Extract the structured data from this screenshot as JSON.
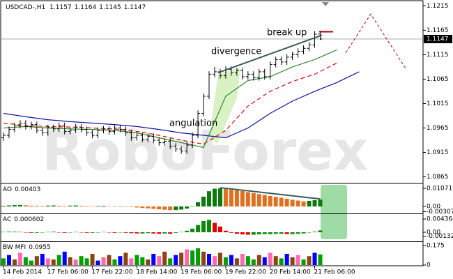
{
  "chart_data": [
    {
      "type": "ohlc",
      "title": "USDCAD-,H1",
      "watermark": "RoboForex",
      "color": "#000000",
      "open": [
        1.0945,
        1.095,
        1.0962,
        1.097,
        1.0975,
        1.0968,
        1.0972,
        1.096,
        1.0955,
        1.0966,
        1.0963,
        1.097,
        1.0958,
        1.096,
        1.0967,
        1.0962,
        1.0955,
        1.095,
        1.096,
        1.0963,
        1.0958,
        1.0965,
        1.0962,
        1.0955,
        1.0945,
        1.095,
        1.0942,
        1.0948,
        1.094,
        1.0935,
        1.0938,
        1.0928,
        1.0922,
        1.0918,
        1.093,
        1.095,
        1.0995,
        1.103,
        1.1075,
        1.108,
        1.1072,
        1.1085,
        1.1078,
        1.1082,
        1.107,
        1.1075,
        1.1068,
        1.108,
        1.107,
        1.1095,
        1.1105,
        1.11,
        1.111,
        1.1115,
        1.1122,
        1.1128,
        1.1135,
        1.1157
      ],
      "high": [
        1.0956,
        1.0968,
        1.0976,
        1.0981,
        1.0981,
        1.0978,
        1.0978,
        1.0966,
        1.0972,
        1.0972,
        1.0976,
        1.0976,
        1.0966,
        1.0973,
        1.0973,
        1.0968,
        1.0961,
        1.0966,
        1.0969,
        1.0969,
        1.0971,
        1.0971,
        1.0968,
        1.0961,
        1.0956,
        1.0956,
        1.0954,
        1.0954,
        1.0946,
        1.0944,
        1.0944,
        1.0934,
        1.0928,
        1.0936,
        1.0956,
        1.1001,
        1.1036,
        1.1081,
        1.109,
        1.1086,
        1.1091,
        1.1091,
        1.1088,
        1.1088,
        1.1081,
        1.1081,
        1.1086,
        1.1086,
        1.1101,
        1.1111,
        1.1111,
        1.1116,
        1.1121,
        1.1128,
        1.1134,
        1.1141,
        1.1163,
        1.1164
      ],
      "low": [
        1.0939,
        1.0944,
        1.0956,
        1.0964,
        1.0962,
        1.0962,
        1.0954,
        1.0949,
        1.0949,
        1.0957,
        1.0957,
        1.0952,
        1.0952,
        1.0954,
        1.0956,
        1.0949,
        1.0944,
        1.0944,
        1.0954,
        1.0952,
        1.0952,
        1.0956,
        1.0949,
        1.0939,
        1.0939,
        1.0936,
        1.0936,
        1.0934,
        1.0929,
        1.0929,
        1.0922,
        1.0916,
        1.0912,
        1.0912,
        1.0924,
        1.0944,
        1.0989,
        1.1024,
        1.1069,
        1.1066,
        1.1066,
        1.1072,
        1.1072,
        1.1064,
        1.1064,
        1.1062,
        1.1062,
        1.1064,
        1.1064,
        1.1089,
        1.1094,
        1.1094,
        1.1104,
        1.1109,
        1.1116,
        1.1122,
        1.1129,
        1.1145
      ],
      "close": [
        1.095,
        1.0962,
        1.097,
        1.0975,
        1.0968,
        1.0972,
        1.096,
        1.0955,
        1.0966,
        1.0963,
        1.097,
        1.0958,
        1.096,
        1.0967,
        1.0962,
        1.0955,
        1.095,
        1.096,
        1.0963,
        1.0958,
        1.0965,
        1.0962,
        1.0955,
        1.0945,
        1.095,
        1.0942,
        1.0948,
        1.094,
        1.0935,
        1.0938,
        1.0928,
        1.0922,
        1.0918,
        1.093,
        1.095,
        1.0995,
        1.103,
        1.1075,
        1.108,
        1.1072,
        1.1085,
        1.1078,
        1.1082,
        1.107,
        1.1075,
        1.1068,
        1.108,
        1.107,
        1.1095,
        1.1105,
        1.11,
        1.111,
        1.1115,
        1.1122,
        1.1128,
        1.1135,
        1.1157,
        1.1147
      ],
      "xlim": [
        -0.5,
        75.5
      ],
      "xticks": [
        {
          "value": 0,
          "label": "14 Feb 2014"
        },
        {
          "value": 8,
          "label": "17 Feb 06:00"
        },
        {
          "value": 16,
          "label": "17 Feb 22:00"
        },
        {
          "value": 24,
          "label": "18 Feb 14:00"
        },
        {
          "value": 32,
          "label": "19 Feb 06:00"
        },
        {
          "value": 40,
          "label": "19 Feb 22:00"
        },
        {
          "value": 48,
          "label": "20 Feb 14:00"
        },
        {
          "value": 56,
          "label": "21 Feb 06:00"
        }
      ],
      "ylim": [
        1.0853,
        1.1224
      ],
      "yticks": [
        1.0865,
        1.0915,
        1.0965,
        1.1015,
        1.1065,
        1.1115,
        1.1165,
        1.1215
      ],
      "lines": [
        {
          "color": "#1010a0",
          "dash": false,
          "x": [
            0,
            4,
            8,
            12,
            16,
            20,
            24,
            28,
            32,
            36,
            40,
            44,
            48,
            52,
            56,
            60,
            64
          ],
          "values": [
            1.0995,
            1.0988,
            1.0982,
            1.0978,
            1.0975,
            1.0972,
            1.0968,
            1.0962,
            1.0955,
            1.095,
            1.0945,
            1.0965,
            1.0995,
            1.102,
            1.104,
            1.1058,
            1.108
          ]
        },
        {
          "color": "#e00000",
          "dash": true,
          "x": [
            0,
            4,
            8,
            12,
            16,
            20,
            24,
            28,
            32,
            36,
            40,
            44,
            48,
            52,
            56,
            60,
            64
          ],
          "values": [
            1.0975,
            1.097,
            1.0968,
            1.0967,
            1.0965,
            1.0963,
            1.0958,
            1.095,
            1.094,
            1.0932,
            1.096,
            1.101,
            1.104,
            1.106,
            1.1075,
            1.1098,
            null
          ]
        },
        {
          "color": "#2e8b2e",
          "dash": false,
          "x": [
            0,
            4,
            8,
            12,
            16,
            20,
            24,
            28,
            32,
            36,
            40,
            44,
            48,
            52,
            56,
            60,
            64
          ],
          "values": [
            1.0965,
            1.0968,
            1.0965,
            1.0963,
            1.0962,
            1.096,
            1.0955,
            1.0945,
            1.0935,
            1.0925,
            1.103,
            1.1062,
            1.107,
            1.109,
            1.1105,
            1.1125,
            null
          ]
        }
      ],
      "trendline": {
        "color": "#3c5a5a",
        "x": [
          38.6,
          57.3
        ],
        "values": [
          1.1078,
          1.1155
        ]
      },
      "breakout": {
        "color": "#a00000",
        "x": [
          56.8,
          59.3
        ],
        "values": [
          1.1162,
          1.1162
        ]
      },
      "forecast": {
        "color": "#c00000",
        "x": [
          61.6,
          66.1,
          72.3
        ],
        "values": [
          1.1119,
          1.1198,
          1.1088
        ]
      },
      "annotations": [
        "divergence",
        "break up",
        "angulation"
      ]
    },
    {
      "type": "bar",
      "title": "AO",
      "up_color": "#0a7a0a",
      "down_color": "#e07020",
      "values": [
        0.0004,
        0.0006,
        0.0008,
        0.0009,
        0.0007,
        0.0005,
        0.0004,
        0.0003,
        0.0005,
        0.0006,
        0.0004,
        0.0003,
        0.0005,
        0.0006,
        0.0004,
        0.0003,
        0.0002,
        0.0003,
        0.0004,
        0.0002,
        0.0001,
        0.0002,
        0,
        -0.0003,
        -0.0006,
        -0.0009,
        -0.0011,
        -0.0014,
        -0.0017,
        -0.0019,
        -0.0022,
        -0.0021,
        -0.0018,
        -0.0012,
        0.0002,
        0.0025,
        0.0058,
        0.009,
        0.0105,
        0.0107,
        0.0104,
        0.01,
        0.0096,
        0.0091,
        0.0085,
        0.0079,
        0.0073,
        0.0068,
        0.0062,
        0.0057,
        0.0052,
        0.0046,
        0.004,
        0.0035,
        0.003,
        0.0033,
        0.0037,
        0.00403
      ],
      "ylim": [
        -0.0037,
        0.0132
      ],
      "yticks": [
        0.01071,
        {
          "value": 0,
          "label": "0.00"
        },
        {
          "value": -0.00307,
          "label": "-0.00307"
        }
      ],
      "divergence": {
        "color": "#3c5a5a",
        "from": 39,
        "to": 57
      }
    },
    {
      "type": "bar",
      "title": "AC",
      "up_color": "#0a8a0a",
      "down_color": "#e00000",
      "values": [
        0.0001,
        0.0002,
        0.0002,
        0.0001,
        -0.0001,
        -0.0002,
        -0.0002,
        -0.0001,
        0.0001,
        0.0002,
        0,
        -0.0002,
        0,
        0.0001,
        -0.0001,
        -0.0002,
        -0.0002,
        0,
        0.0001,
        -0.0001,
        -0.0002,
        -0.0001,
        -0.0002,
        -0.0003,
        -0.0004,
        -0.0004,
        -0.0003,
        -0.0004,
        -0.0005,
        -0.0004,
        -0.0005,
        -0.0002,
        0.0001,
        0.0005,
        0.0012,
        0.0024,
        0.0037,
        0.0041,
        0.0031,
        0.0019,
        0.0005,
        -0.0002,
        -0.0005,
        -0.0007,
        -0.0008,
        -0.0008,
        -0.0007,
        -0.0006,
        -0.0006,
        -0.0005,
        -0.0005,
        -0.0006,
        -0.0006,
        -0.0005,
        -0.0004,
        -0.0001,
        0.0002,
        0.000602
      ],
      "ylim": [
        -0.00276,
        0.00574
      ],
      "yticks": [
        0.004364,
        {
          "value": 0,
          "label": "0.00"
        },
        {
          "value": -0.00132,
          "label": "-0.00132"
        }
      ]
    },
    {
      "type": "bar",
      "title": "BW MFI",
      "values": [
        0.06,
        0.09,
        0.05,
        0.11,
        0.07,
        0.04,
        0.08,
        0.1,
        0.06,
        0.05,
        0.09,
        0.12,
        0.07,
        0.05,
        0.08,
        0.06,
        0.1,
        0.04,
        0.07,
        0.09,
        0.05,
        0.08,
        0.11,
        0.06,
        0.09,
        0.07,
        0.05,
        0.1,
        0.08,
        0.12,
        0.06,
        0.09,
        0.11,
        0.14,
        0.13,
        0.15,
        0.12,
        0.1,
        0.08,
        0.11,
        0.07,
        0.09,
        0.06,
        0.1,
        0.08,
        0.05,
        0.09,
        0.07,
        0.11,
        0.08,
        0.06,
        0.1,
        0.07,
        0.09,
        0.05,
        0.08,
        0.11,
        0.0955
      ],
      "colors": [
        "#00a000",
        "#0000ff",
        "#8b4513",
        "#ff69b4",
        "#00a000",
        "#00a000",
        "#8b4513",
        "#0000ff",
        "#ff69b4",
        "#8b4513",
        "#00a000",
        "#0000ff",
        "#8b4513",
        "#ff69b4",
        "#00a000",
        "#00a000",
        "#8b4513",
        "#0000ff",
        "#ff69b4",
        "#8b4513",
        "#00a000",
        "#0000ff",
        "#8b4513",
        "#ff69b4",
        "#00a000",
        "#00a000",
        "#8b4513",
        "#0000ff",
        "#ff69b4",
        "#8b4513",
        "#00a000",
        "#0000ff",
        "#8b4513",
        "#ff69b4",
        "#00a000",
        "#00a000",
        "#8b4513",
        "#0000ff",
        "#ff69b4",
        "#8b4513",
        "#00a000",
        "#0000ff",
        "#8b4513",
        "#ff69b4",
        "#00a000",
        "#00a000",
        "#8b4513",
        "#0000ff",
        "#ff69b4",
        "#8b4513",
        "#00a000",
        "#0000ff",
        "#8b4513",
        "#ff69b4",
        "#00a000",
        "#8b4513",
        "#0000ff",
        "#00a000"
      ],
      "ylim": [
        0,
        0.2
      ],
      "yticks": [
        0.175,
        0
      ]
    }
  ]
}
